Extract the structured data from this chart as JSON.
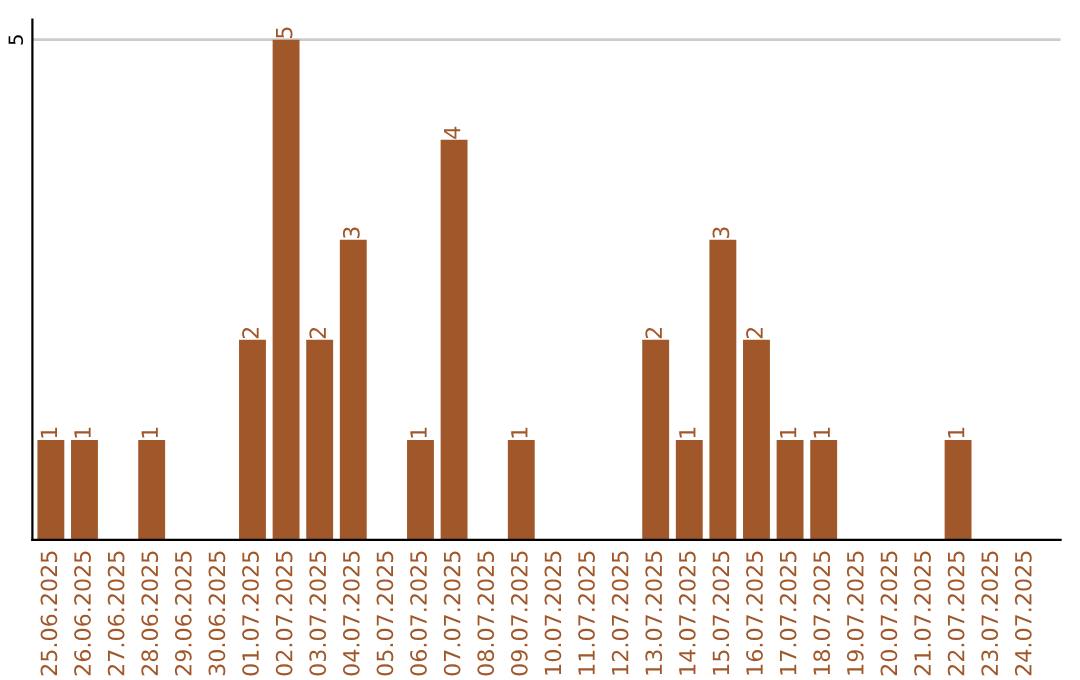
{
  "chart_data": {
    "type": "bar",
    "categories": [
      "25.06.2025",
      "26.06.2025",
      "27.06.2025",
      "28.06.2025",
      "29.06.2025",
      "30.06.2025",
      "01.07.2025",
      "02.07.2025",
      "03.07.2025",
      "04.07.2025",
      "05.07.2025",
      "06.07.2025",
      "07.07.2025",
      "08.07.2025",
      "09.07.2025",
      "10.07.2025",
      "11.07.2025",
      "12.07.2025",
      "13.07.2025",
      "14.07.2025",
      "15.07.2025",
      "16.07.2025",
      "17.07.2025",
      "18.07.2025",
      "19.07.2025",
      "20.07.2025",
      "21.07.2025",
      "22.07.2025",
      "23.07.2025",
      "24.07.2025"
    ],
    "values": [
      1,
      1,
      0,
      1,
      0,
      0,
      2,
      5,
      2,
      3,
      0,
      1,
      4,
      0,
      1,
      0,
      0,
      0,
      2,
      1,
      3,
      2,
      1,
      1,
      0,
      0,
      0,
      1,
      0,
      0
    ],
    "value_labels": [
      "1",
      "1",
      null,
      "1",
      null,
      null,
      "2",
      "5",
      "2",
      "3",
      null,
      "1",
      "4",
      null,
      "1",
      null,
      null,
      null,
      "2",
      "1",
      "3",
      "2",
      "1",
      "1",
      null,
      null,
      null,
      "1",
      null,
      null
    ],
    "color": "#a0572a",
    "ylim": [
      0,
      5.2
    ],
    "yticks": [
      5
    ],
    "grid": "y"
  }
}
